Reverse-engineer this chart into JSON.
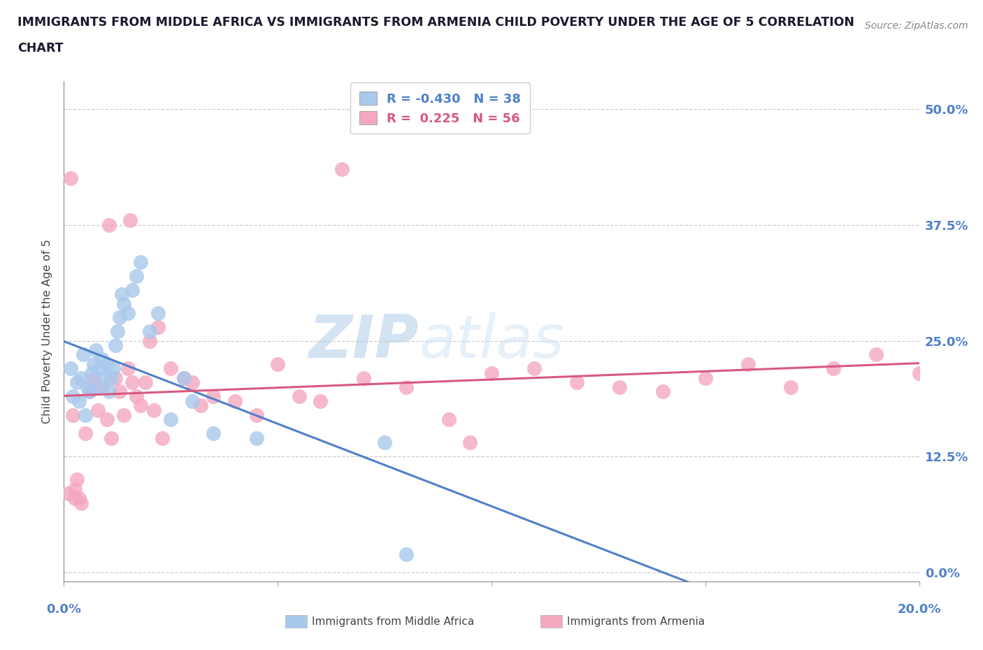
{
  "title_line1": "IMMIGRANTS FROM MIDDLE AFRICA VS IMMIGRANTS FROM ARMENIA CHILD POVERTY UNDER THE AGE OF 5 CORRELATION",
  "title_line2": "CHART",
  "source": "Source: ZipAtlas.com",
  "ylabel": "Child Poverty Under the Age of 5",
  "legend_label1": "Immigrants from Middle Africa",
  "legend_label2": "Immigrants from Armenia",
  "r1": -0.43,
  "n1": 38,
  "r2": 0.225,
  "n2": 56,
  "color1": "#A8C8EC",
  "color2": "#F4A8BF",
  "line_color1": "#5080C8",
  "line_color2": "#D85880",
  "right_axis_color": "#5080C8",
  "xlim": [
    0.0,
    20.0
  ],
  "ylim": [
    -1.0,
    53.0
  ],
  "ytick_values": [
    0.0,
    12.5,
    25.0,
    37.5,
    50.0
  ],
  "watermark_zip": "ZIP",
  "watermark_atlas": "atlas",
  "middle_africa_x": [
    0.15,
    0.2,
    0.3,
    0.35,
    0.4,
    0.45,
    0.5,
    0.55,
    0.6,
    0.65,
    0.7,
    0.75,
    0.8,
    0.85,
    0.9,
    0.95,
    1.0,
    1.05,
    1.1,
    1.15,
    1.2,
    1.25,
    1.3,
    1.35,
    1.4,
    1.5,
    1.6,
    1.7,
    1.8,
    2.0,
    2.2,
    2.5,
    2.8,
    3.0,
    3.5,
    4.5,
    7.5,
    8.0
  ],
  "middle_africa_y": [
    22.0,
    19.0,
    20.5,
    18.5,
    21.0,
    23.5,
    17.0,
    20.0,
    19.5,
    21.5,
    22.5,
    24.0,
    20.0,
    22.0,
    23.0,
    21.0,
    22.5,
    19.5,
    21.0,
    22.0,
    24.5,
    26.0,
    27.5,
    30.0,
    29.0,
    28.0,
    30.5,
    32.0,
    33.5,
    26.0,
    28.0,
    16.5,
    21.0,
    18.5,
    15.0,
    14.5,
    14.0,
    2.0
  ],
  "armenia_x": [
    0.1,
    0.15,
    0.2,
    0.25,
    0.3,
    0.35,
    0.4,
    0.5,
    0.6,
    0.7,
    0.8,
    0.9,
    1.0,
    1.1,
    1.2,
    1.3,
    1.4,
    1.5,
    1.6,
    1.7,
    1.8,
    1.9,
    2.0,
    2.1,
    2.2,
    2.5,
    2.8,
    3.0,
    3.5,
    4.0,
    4.5,
    5.0,
    5.5,
    6.0,
    7.0,
    8.0,
    9.0,
    10.0,
    11.0,
    12.0,
    13.0,
    14.0,
    15.0,
    16.0,
    17.0,
    18.0,
    19.0,
    20.0,
    1.05,
    1.55,
    2.3,
    3.2,
    6.5,
    9.5,
    0.25,
    0.65
  ],
  "armenia_y": [
    8.5,
    42.5,
    17.0,
    9.0,
    10.0,
    8.0,
    7.5,
    15.0,
    19.5,
    21.0,
    17.5,
    20.0,
    16.5,
    14.5,
    21.0,
    19.5,
    17.0,
    22.0,
    20.5,
    19.0,
    18.0,
    20.5,
    25.0,
    17.5,
    26.5,
    22.0,
    21.0,
    20.5,
    19.0,
    18.5,
    17.0,
    22.5,
    19.0,
    18.5,
    21.0,
    20.0,
    16.5,
    21.5,
    22.0,
    20.5,
    20.0,
    19.5,
    21.0,
    22.5,
    20.0,
    22.0,
    23.5,
    21.5,
    37.5,
    38.0,
    14.5,
    18.0,
    43.5,
    14.0,
    8.0,
    20.0
  ]
}
